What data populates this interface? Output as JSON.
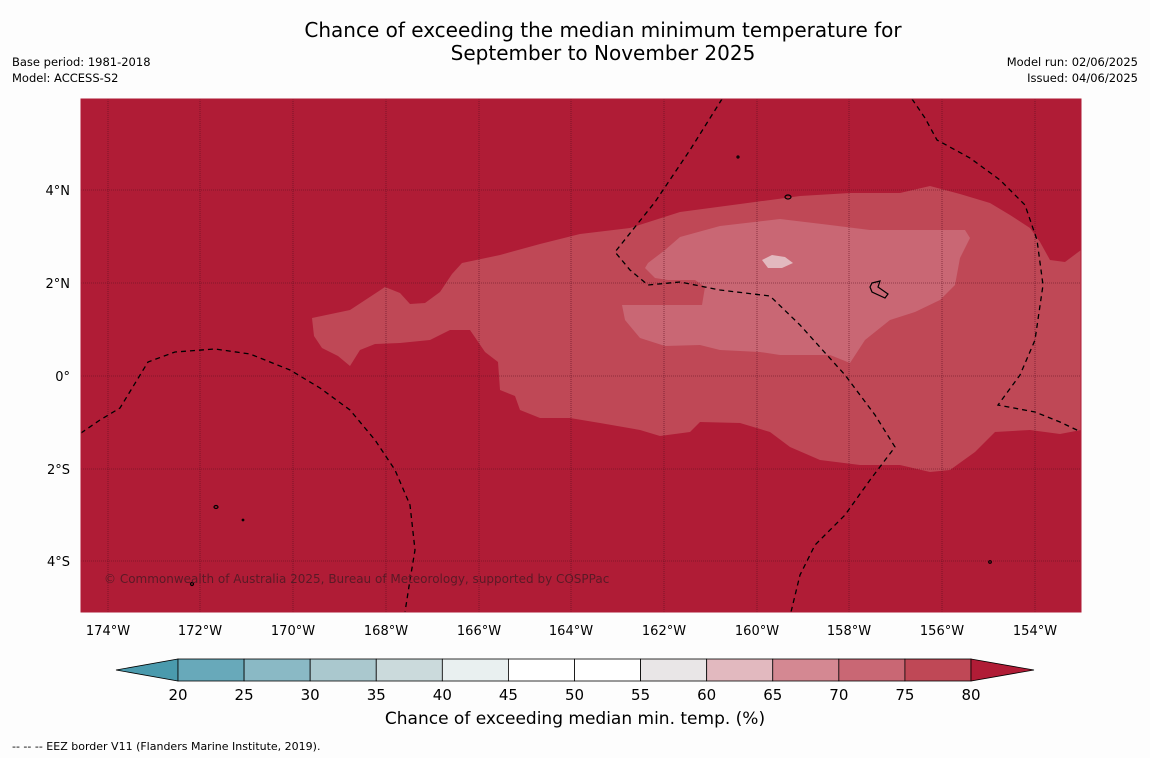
{
  "header": {
    "title_line1": "Chance of exceeding the median minimum temperature for",
    "title_line2": "September to November 2025",
    "base_period": "Base period: 1981-2018",
    "model": "Model: ACCESS-S2",
    "model_run": "Model run: 02/06/2025",
    "issued": "Issued: 04/06/2025"
  },
  "map": {
    "copyright": "© Commonwealth of Australia 2025, Bureau of Meteorology, supported by COSPPac",
    "lon_ticks": [
      "174°W",
      "172°W",
      "170°W",
      "168°W",
      "166°W",
      "164°W",
      "162°W",
      "160°W",
      "158°W",
      "156°W",
      "154°W"
    ],
    "lat_ticks": [
      "4°N",
      "2°N",
      "0°",
      "2°S",
      "4°S"
    ],
    "colors": {
      "c75_80": "#b01c36",
      "c70_75": "#bf4856",
      "c65_70": "#c96774",
      "border": "#000000",
      "grid": "#5a1020"
    }
  },
  "colorbar": {
    "ticks": [
      "20",
      "25",
      "30",
      "35",
      "40",
      "45",
      "50",
      "55",
      "60",
      "65",
      "70",
      "75",
      "80"
    ],
    "colors": [
      "#68a9ba",
      "#8ab9c5",
      "#aac8ce",
      "#cbdadc",
      "#e9f0f0",
      "#ffffff",
      "#ffffff",
      "#e9e6e7",
      "#e2b9bf",
      "#d48892",
      "#c96774",
      "#bf4856"
    ],
    "under_color": "#4a9aad",
    "over_color": "#b01c36",
    "label": "Chance of exceeding median min. temp. (%)"
  },
  "footnote": "--  --  -- EEZ border V11 (Flanders Marine Institute, 2019)."
}
